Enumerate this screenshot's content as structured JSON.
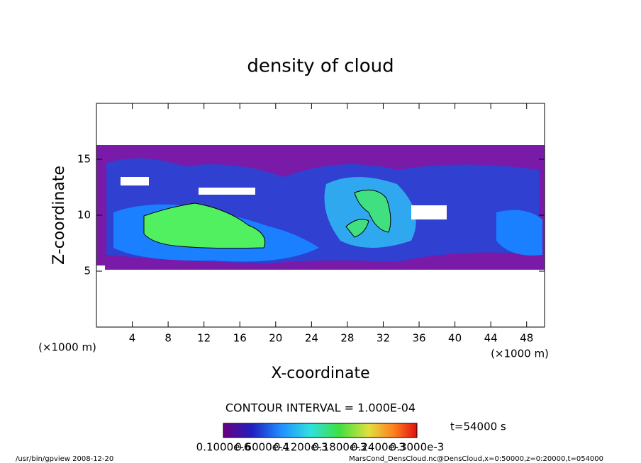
{
  "chart_data": {
    "type": "contour",
    "title": "density of cloud",
    "x_label": "X-coordinate",
    "y_label": "Z-coordinate",
    "x_unit_left": "(×1000 m)",
    "x_unit_right": "(×1000 m)",
    "xlim": [
      0,
      50
    ],
    "xticks": [
      4,
      8,
      12,
      16,
      20,
      24,
      28,
      32,
      36,
      40,
      44,
      48
    ],
    "ylim": [
      0,
      20
    ],
    "yticks": [
      5,
      10,
      15
    ],
    "contour_interval": "CONTOUR INTERVAL = 1.000E-04",
    "time": "t=54000 s",
    "colorbar_labels": [
      "0.1000e-6",
      "0.6000e-4",
      "0.1200e-3",
      "0.1800e-3",
      "0.2400e-3",
      "0.3000e-3"
    ],
    "footer_left": "/usr/bin/gpview   2008-12-20",
    "footer_right": "MarsCond_DensCloud.nc@DensCloud,x=0:50000,z=0:20000,t=054000"
  }
}
